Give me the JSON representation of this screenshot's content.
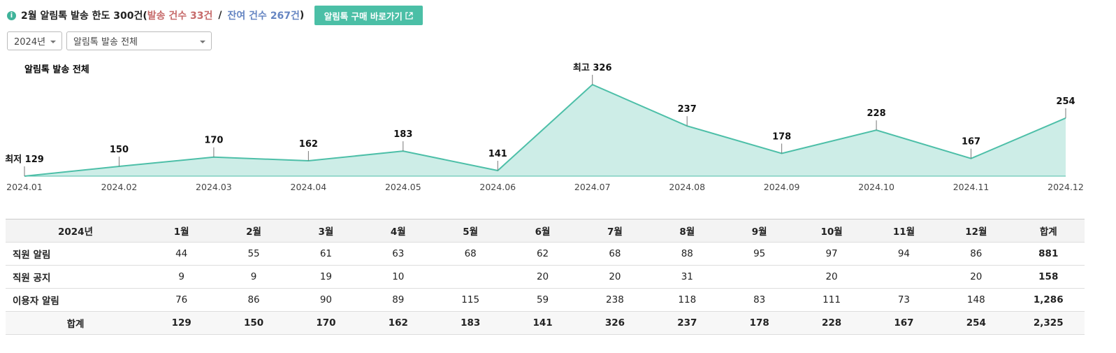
{
  "header": {
    "title_prefix": "2월 알림톡 발송 한도 300건(",
    "sent": "발송 건수 33건",
    "separator": "/",
    "remaining": "잔여 건수 267건",
    "title_suffix": ")"
  },
  "button": "알림톡 구매 바로가기",
  "filters": [
    "2024년",
    "알림톡 발송 전체"
  ],
  "chart_data": {
    "type": "area",
    "title": "알림톡 발송 전체",
    "color": "#4dbfa8",
    "categories": [
      "2024.01",
      "2024.02",
      "2024.03",
      "2024.04",
      "2024.05",
      "2024.06",
      "2024.07",
      "2024.08",
      "2024.09",
      "2024.10",
      "2024.11",
      "2024.12"
    ],
    "values": [
      129,
      150,
      170,
      162,
      183,
      141,
      326,
      237,
      178,
      228,
      167,
      254
    ],
    "value_labels": [
      "최저 129",
      "150",
      "170",
      "162",
      "183",
      "141",
      "최고 326",
      "237",
      "178",
      "228",
      "167",
      "254"
    ]
  },
  "table": {
    "header": [
      "2024년",
      "1월",
      "2월",
      "3월",
      "4월",
      "5월",
      "6월",
      "7월",
      "8월",
      "9월",
      "10월",
      "11월",
      "12월",
      "합계"
    ],
    "rows": [
      [
        "직원 알림",
        "44",
        "55",
        "61",
        "63",
        "68",
        "62",
        "68",
        "88",
        "95",
        "97",
        "94",
        "86",
        "881"
      ],
      [
        "직원 공지",
        "9",
        "9",
        "19",
        "10",
        null,
        "20",
        "20",
        "31",
        null,
        "20",
        null,
        "20",
        "158"
      ],
      [
        "이용자 알림",
        "76",
        "86",
        "90",
        "89",
        "115",
        "59",
        "238",
        "118",
        "83",
        "111",
        "73",
        "148",
        "1,286"
      ],
      [
        "합계",
        "129",
        "150",
        "170",
        "162",
        "183",
        "141",
        "326",
        "237",
        "178",
        "228",
        "167",
        "254",
        "2,325"
      ]
    ]
  }
}
